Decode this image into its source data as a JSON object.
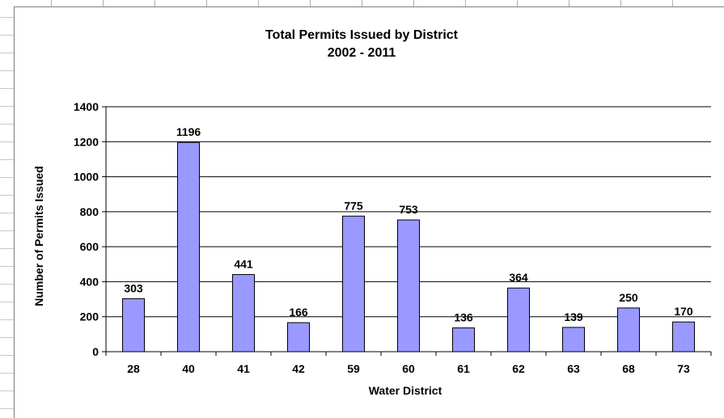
{
  "chart_data": {
    "type": "bar",
    "title": "Total Permits Issued by District",
    "subtitle": "2002 - 2011",
    "xlabel": "Water District",
    "ylabel": "Number of Permits Issued",
    "categories": [
      "28",
      "40",
      "41",
      "42",
      "59",
      "60",
      "61",
      "62",
      "63",
      "68",
      "73"
    ],
    "values": [
      303,
      1196,
      441,
      166,
      775,
      753,
      136,
      364,
      139,
      250,
      170
    ],
    "ylim": [
      0,
      1400
    ],
    "yticks": [
      "0",
      "200",
      "400",
      "600",
      "800",
      "1000",
      "1200",
      "1400"
    ],
    "grid": true,
    "legend": "none",
    "bar_color": "#9999ff"
  }
}
